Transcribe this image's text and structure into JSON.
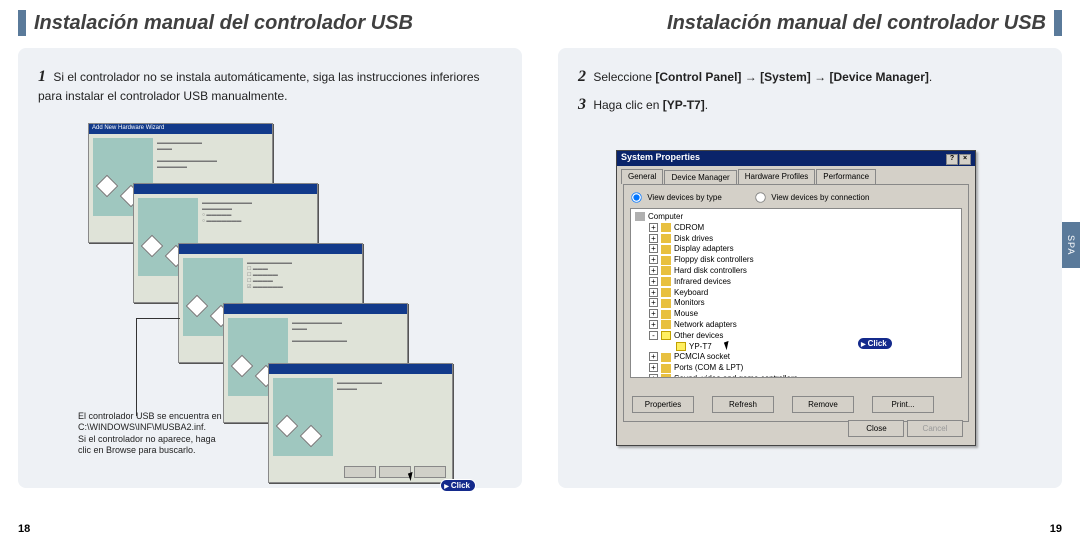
{
  "colors": {
    "accent": "#5a7a9a",
    "nav_blue": "#0a246a",
    "panel_bg": "#eef1f5",
    "win_bg": "#d4d0c8",
    "badge_bg": "#142a8c",
    "text": "#222222"
  },
  "leftPage": {
    "title": "Instalación manual del controlador USB",
    "step1": "Si el controlador no se instala automáticamente, siga las instrucciones inferiores para instalar el controlador USB manualmente.",
    "wizard_title": "Add New Hardware Wizard",
    "click_label": "Click",
    "callout_l1": "El controlador USB se encuentra en",
    "callout_l2": "C:\\WINDOWS\\INF\\MUSBA2.inf.",
    "callout_l3": "Si el controlador no aparece, haga",
    "callout_l4": "clic en Browse para buscarlo.",
    "page_num": "18"
  },
  "rightPage": {
    "title": "Instalación manual del controlador USB",
    "step2_pre": "Seleccione ",
    "step2_b1": "Control Panel",
    "step2_b2": "System",
    "step2_b3": "Device Manager",
    "step2_arrow": " → ",
    "step2_end": ".",
    "step3_pre": "Haga clic en ",
    "step3_b": "YP-T7",
    "step3_end": ".",
    "click_label": "Click",
    "spa_label": "SPA",
    "page_num": "19",
    "sysprops": {
      "title": "System Properties",
      "tabs": [
        "General",
        "Device Manager",
        "Hardware Profiles",
        "Performance"
      ],
      "active_tab": 1,
      "radio1": "View devices by type",
      "radio2": "View devices by connection",
      "tree": [
        {
          "lvl": 0,
          "pm": "",
          "ico": "comp",
          "label": "Computer"
        },
        {
          "lvl": 1,
          "pm": "+",
          "ico": "dev",
          "label": "CDROM"
        },
        {
          "lvl": 1,
          "pm": "+",
          "ico": "dev",
          "label": "Disk drives"
        },
        {
          "lvl": 1,
          "pm": "+",
          "ico": "dev",
          "label": "Display adapters"
        },
        {
          "lvl": 1,
          "pm": "+",
          "ico": "dev",
          "label": "Floppy disk controllers"
        },
        {
          "lvl": 1,
          "pm": "+",
          "ico": "dev",
          "label": "Hard disk controllers"
        },
        {
          "lvl": 1,
          "pm": "+",
          "ico": "dev",
          "label": "Infrared devices"
        },
        {
          "lvl": 1,
          "pm": "+",
          "ico": "dev",
          "label": "Keyboard"
        },
        {
          "lvl": 1,
          "pm": "+",
          "ico": "dev",
          "label": "Monitors"
        },
        {
          "lvl": 1,
          "pm": "+",
          "ico": "dev",
          "label": "Mouse"
        },
        {
          "lvl": 1,
          "pm": "+",
          "ico": "dev",
          "label": "Network adapters"
        },
        {
          "lvl": 1,
          "pm": "-",
          "ico": "yel",
          "label": "Other devices"
        },
        {
          "lvl": 2,
          "pm": "",
          "ico": "yel",
          "label": "YP-T7",
          "sel": true
        },
        {
          "lvl": 1,
          "pm": "+",
          "ico": "dev",
          "label": "PCMCIA socket"
        },
        {
          "lvl": 1,
          "pm": "+",
          "ico": "dev",
          "label": "Ports (COM & LPT)"
        },
        {
          "lvl": 1,
          "pm": "+",
          "ico": "dev",
          "label": "Sound, video and game controllers"
        }
      ],
      "buttons": [
        "Properties",
        "Refresh",
        "Remove",
        "Print..."
      ],
      "bottom": [
        "Close",
        "Cancel"
      ]
    }
  }
}
